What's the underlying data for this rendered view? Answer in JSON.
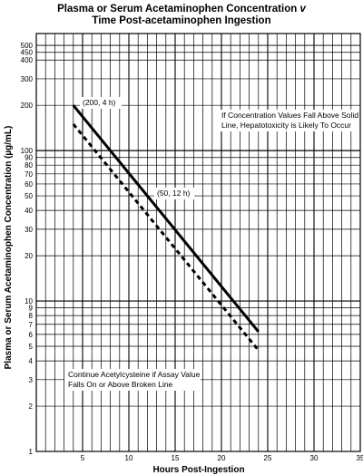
{
  "chart_data": {
    "type": "line",
    "title_line1": "Plasma or Serum Acetaminophen Concentration",
    "title_line1_italic": "v",
    "title_line2": "Time Post-acetaminophen Ingestion",
    "xlabel": "Hours Post-Ingestion",
    "ylabel": "Plasma or Serum Acetaminophen Concentration (µg/mL)",
    "x_scale": "linear",
    "y_scale": "log",
    "xlim": [
      0,
      35
    ],
    "ylim": [
      1,
      600
    ],
    "grid": true,
    "x_ticks": [
      5,
      10,
      15,
      20,
      25,
      30,
      35
    ],
    "x_tick_labels": [
      "5",
      "10",
      "15",
      "20",
      "25",
      "30",
      "35"
    ],
    "y_ticks": [
      1,
      2,
      3,
      4,
      5,
      6,
      7,
      8,
      9,
      10,
      20,
      30,
      40,
      50,
      60,
      70,
      80,
      90,
      100,
      200,
      300,
      400,
      450,
      500
    ],
    "y_tick_labels": [
      "1",
      "2",
      "3",
      "4",
      "5",
      "6",
      "7",
      "8",
      "9",
      "10",
      "20",
      "30",
      "40",
      "50",
      "60",
      "70",
      "80",
      "90",
      "100",
      "200",
      "300",
      "400",
      "450",
      "500"
    ],
    "series": [
      {
        "style": "solid",
        "x": [
          4,
          24
        ],
        "y": [
          200,
          6.25
        ]
      },
      {
        "style": "dashed",
        "x": [
          4,
          24
        ],
        "y": [
          150,
          4.7
        ]
      }
    ],
    "annotations": {
      "point_200": "(200, 4 h)",
      "point_50": "(50, 12 h)",
      "solid_note_line1": "If Concentration Values Fall Above Solid",
      "solid_note_line2": "Line, Hepatotoxicity is Likely To Occur",
      "dashed_note_line1": "Continue Acetylcysteine if Assay Value",
      "dashed_note_line2": "Falls On or Above Broken Line"
    }
  }
}
